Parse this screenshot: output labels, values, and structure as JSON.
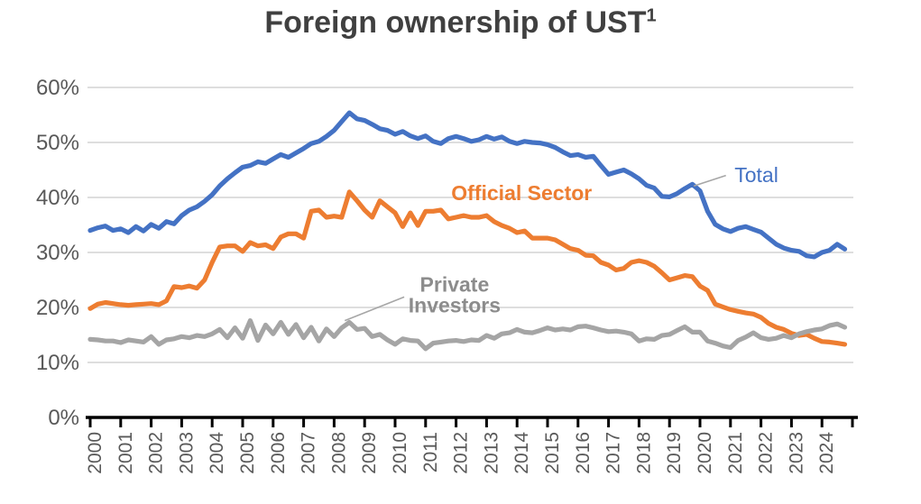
{
  "title": {
    "text": "Foreign ownership of UST",
    "superscript": "1"
  },
  "chart_data": {
    "type": "line",
    "title": "Foreign ownership of UST¹",
    "x_start_year": 2000,
    "points_per_year": 4,
    "x_tick_labels": [
      "2000",
      "2001",
      "2002",
      "2003",
      "2004",
      "2005",
      "2006",
      "2007",
      "2008",
      "2009",
      "2010",
      "2011",
      "2012",
      "2013",
      "2014",
      "2015",
      "2016",
      "2017",
      "2018",
      "2019",
      "2020",
      "2021",
      "2022",
      "2023",
      "2024"
    ],
    "xlabel": "",
    "ylabel": "",
    "y_unit": "%",
    "ylim": [
      0,
      60
    ],
    "y_ticks": [
      0,
      10,
      20,
      30,
      40,
      50,
      60
    ],
    "grid": true,
    "grid_color": "#D9D9D9",
    "axis_color": "#000000",
    "tick_label_color": "#595959",
    "series": [
      {
        "name": "Total",
        "color": "#4472C4",
        "values": [
          34.0,
          34.5,
          34.8,
          34.0,
          34.3,
          33.6,
          34.7,
          33.9,
          35.1,
          34.4,
          35.6,
          35.2,
          36.7,
          37.7,
          38.3,
          39.3,
          40.5,
          42.1,
          43.4,
          44.5,
          45.5,
          45.8,
          46.5,
          46.2,
          47.0,
          47.8,
          47.3,
          48.1,
          48.9,
          49.8,
          50.2,
          51.1,
          52.2,
          53.8,
          55.4,
          54.3,
          54.0,
          53.3,
          52.5,
          52.2,
          51.5,
          52.0,
          51.2,
          50.7,
          51.2,
          50.2,
          49.8,
          50.7,
          51.1,
          50.7,
          50.2,
          50.5,
          51.1,
          50.6,
          51.0,
          50.2,
          49.8,
          50.2,
          50.0,
          49.9,
          49.6,
          49.1,
          48.3,
          47.6,
          47.8,
          47.3,
          47.5,
          45.8,
          44.2,
          44.6,
          45.0,
          44.3,
          43.4,
          42.2,
          41.7,
          40.2,
          40.1,
          40.7,
          41.6,
          42.4,
          41.2,
          37.5,
          35.1,
          34.3,
          33.8,
          34.4,
          34.7,
          34.2,
          33.7,
          32.6,
          31.5,
          30.8,
          30.4,
          30.2,
          29.4,
          29.2,
          30.0,
          30.4,
          31.5,
          30.6
        ]
      },
      {
        "name": "Official Sector",
        "color": "#ED7D31",
        "values": [
          19.8,
          20.6,
          20.9,
          20.7,
          20.5,
          20.4,
          20.5,
          20.6,
          20.7,
          20.5,
          21.2,
          23.8,
          23.6,
          23.9,
          23.5,
          25.0,
          28.2,
          31.0,
          31.2,
          31.2,
          30.2,
          31.8,
          31.2,
          31.4,
          30.7,
          32.8,
          33.4,
          33.4,
          32.6,
          37.5,
          37.7,
          36.4,
          36.6,
          36.4,
          41.0,
          39.4,
          37.7,
          36.4,
          39.4,
          38.3,
          37.2,
          34.7,
          37.2,
          34.9,
          37.5,
          37.5,
          37.7,
          36.1,
          36.4,
          36.7,
          36.4,
          36.4,
          36.7,
          35.6,
          34.9,
          34.4,
          33.6,
          33.9,
          32.6,
          32.6,
          32.6,
          32.3,
          31.5,
          30.7,
          30.4,
          29.5,
          29.4,
          28.2,
          27.7,
          26.8,
          27.1,
          28.2,
          28.5,
          28.2,
          27.5,
          26.3,
          25.0,
          25.4,
          25.8,
          25.6,
          23.9,
          23.1,
          20.6,
          20.1,
          19.6,
          19.3,
          19.0,
          18.8,
          18.2,
          17.1,
          16.4,
          16.0,
          15.3,
          14.9,
          15.1,
          14.4,
          13.8,
          13.7,
          13.5,
          13.3
        ]
      },
      {
        "name": "Private Investors",
        "color": "#A5A5A5",
        "values": [
          14.2,
          14.1,
          13.9,
          13.9,
          13.6,
          14.1,
          13.9,
          13.7,
          14.7,
          13.3,
          14.1,
          14.3,
          14.7,
          14.5,
          14.9,
          14.7,
          15.2,
          16.0,
          14.5,
          16.3,
          14.4,
          17.6,
          14.0,
          16.8,
          15.2,
          17.3,
          15.1,
          16.9,
          14.5,
          16.4,
          13.9,
          16.1,
          14.7,
          16.3,
          17.3,
          16.0,
          16.2,
          14.7,
          15.1,
          14.1,
          13.3,
          14.3,
          14.0,
          13.9,
          12.5,
          13.5,
          13.7,
          13.9,
          14.0,
          13.8,
          14.1,
          14.0,
          14.9,
          14.4,
          15.2,
          15.4,
          16.0,
          15.5,
          15.4,
          15.8,
          16.3,
          15.9,
          16.1,
          15.9,
          16.5,
          16.6,
          16.3,
          15.9,
          15.6,
          15.7,
          15.5,
          15.2,
          13.9,
          14.3,
          14.2,
          14.9,
          15.1,
          15.8,
          16.5,
          15.5,
          15.5,
          13.9,
          13.5,
          13.0,
          12.7,
          14.0,
          14.6,
          15.4,
          14.5,
          14.2,
          14.4,
          14.9,
          14.5,
          15.2,
          15.6,
          15.9,
          16.1,
          16.7,
          17.0,
          16.4
        ]
      }
    ],
    "annotations": [
      {
        "id": "total-label",
        "lines": [
          "Total"
        ],
        "color": "#4472C4",
        "bold": false,
        "x_year": 2021.85,
        "y_pct": 44.1,
        "leader": {
          "color": "#A6A6A6",
          "points": [
            [
              2019.8,
              42.1
            ],
            [
              2020.85,
              44.0
            ]
          ]
        }
      },
      {
        "id": "official-sector-label",
        "lines": [
          "Official Sector"
        ],
        "color": "#ED7D31",
        "bold": true,
        "x_year": 2014.15,
        "y_pct": 40.8
      },
      {
        "id": "private-investors-label",
        "lines": [
          "Private",
          "Investors"
        ],
        "color": "#8C8C8C",
        "bold": true,
        "x_year": 2011.95,
        "y_pct": 22.3,
        "leader": {
          "color": "#A6A6A6",
          "points": [
            [
              2008.35,
              17.6
            ],
            [
              2010.3,
              21.9
            ]
          ]
        }
      }
    ]
  }
}
